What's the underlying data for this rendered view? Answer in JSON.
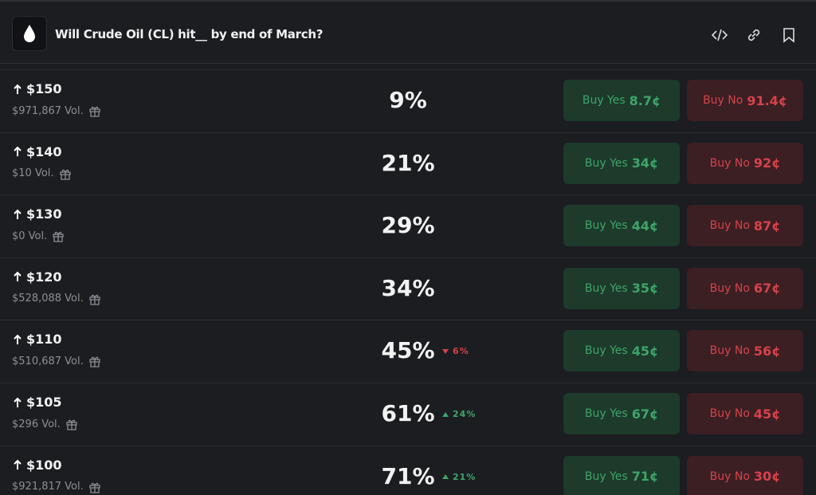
{
  "header": {
    "title": "Will Crude Oil (CL) hit__ by end of March?"
  },
  "buttons": {
    "yes": "Buy Yes",
    "no": "Buy No"
  },
  "rows": [
    {
      "label": "$150",
      "volume": "$971,867 Vol.",
      "probability": "9%",
      "yes_price": "8.7¢",
      "no_price": "91.4¢"
    },
    {
      "label": "$140",
      "volume": "$10 Vol.",
      "probability": "21%",
      "yes_price": "34¢",
      "no_price": "92¢"
    },
    {
      "label": "$130",
      "volume": "$0 Vol.",
      "probability": "29%",
      "yes_price": "44¢",
      "no_price": "87¢"
    },
    {
      "label": "$120",
      "volume": "$528,088 Vol.",
      "probability": "34%",
      "yes_price": "35¢",
      "no_price": "67¢"
    },
    {
      "label": "$110",
      "volume": "$510,687 Vol.",
      "probability": "45%",
      "change": "6%",
      "change_direction": "down",
      "yes_price": "45¢",
      "no_price": "56¢"
    },
    {
      "label": "$105",
      "volume": "$296 Vol.",
      "probability": "61%",
      "change": "24%",
      "change_direction": "up",
      "yes_price": "67¢",
      "no_price": "45¢"
    },
    {
      "label": "$100",
      "volume": "$921,817 Vol.",
      "probability": "71%",
      "change": "21%",
      "change_direction": "up",
      "yes_price": "71¢",
      "no_price": "30¢"
    }
  ]
}
